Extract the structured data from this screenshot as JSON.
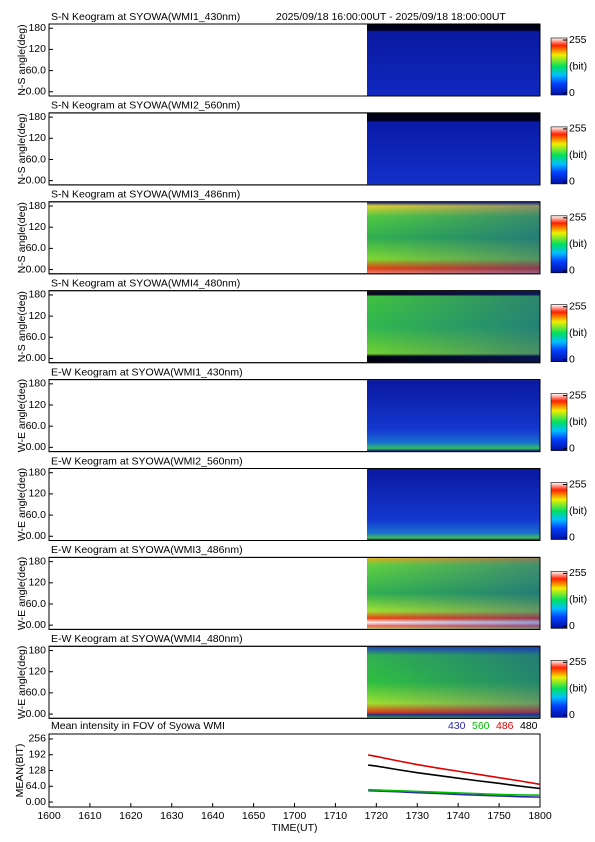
{
  "chart_data": [
    {
      "type": "keogram",
      "title": "S-N Keogram at SYOWA(WMI1_430nm)",
      "subtitle": "2025/09/18 16:00:00UT - 2025/09/18 18:00:00UT",
      "ylabel": "N-S angle(deg)",
      "ylim": [
        -12,
        192
      ],
      "yticks": [
        {
          "value": 0,
          "label": "0.00"
        },
        {
          "value": 60,
          "label": "60.0"
        },
        120,
        180
      ],
      "clim": [
        0,
        255
      ],
      "colorbar_ticks": [
        0,
        255
      ],
      "colorbar_label": "(bit)"
    },
    {
      "type": "keogram",
      "title": "S-N Keogram at SYOWA(WMI2_560nm)",
      "ylabel": "N-S angle(deg)",
      "ylim": [
        -12,
        192
      ],
      "yticks": [
        {
          "value": 0,
          "label": "0.00"
        },
        {
          "value": 60,
          "label": "60.0"
        },
        120,
        180
      ],
      "clim": [
        0,
        255
      ],
      "colorbar_ticks": [
        0,
        255
      ],
      "colorbar_label": "(bit)"
    },
    {
      "type": "keogram",
      "title": "S-N Keogram at SYOWA(WMI3_486nm)",
      "ylabel": "N-S angle(deg)",
      "ylim": [
        -12,
        192
      ],
      "yticks": [
        {
          "value": 0,
          "label": "0.00"
        },
        {
          "value": 60,
          "label": "60.0"
        },
        120,
        180
      ],
      "clim": [
        0,
        255
      ],
      "colorbar_ticks": [
        0,
        255
      ],
      "colorbar_label": "(bit)"
    },
    {
      "type": "keogram",
      "title": "S-N Keogram at SYOWA(WMI4_480nm)",
      "ylabel": "N-S angle(deg)",
      "ylim": [
        -12,
        192
      ],
      "yticks": [
        {
          "value": 0,
          "label": "0.00"
        },
        {
          "value": 60,
          "label": "60.0"
        },
        120,
        180
      ],
      "clim": [
        0,
        255
      ],
      "colorbar_ticks": [
        0,
        255
      ],
      "colorbar_label": "(bit)"
    },
    {
      "type": "keogram",
      "title": "E-W Keogram at SYOWA(WMI1_430nm)",
      "ylabel": "W-E angle(deg)",
      "ylim": [
        -12,
        192
      ],
      "yticks": [
        {
          "value": 0,
          "label": "0.00"
        },
        {
          "value": 60,
          "label": "60.0"
        },
        120,
        180
      ],
      "clim": [
        0,
        255
      ],
      "colorbar_ticks": [
        0,
        255
      ],
      "colorbar_label": "(bit)"
    },
    {
      "type": "keogram",
      "title": "E-W Keogram at SYOWA(WMI2_560nm)",
      "ylabel": "W-E angle(deg)",
      "ylim": [
        -12,
        192
      ],
      "yticks": [
        {
          "value": 0,
          "label": "0.00"
        },
        {
          "value": 60,
          "label": "60.0"
        },
        120,
        180
      ],
      "clim": [
        0,
        255
      ],
      "colorbar_ticks": [
        0,
        255
      ],
      "colorbar_label": "(bit)"
    },
    {
      "type": "keogram",
      "title": "E-W Keogram at SYOWA(WMI3_486nm)",
      "ylabel": "W-E angle(deg)",
      "ylim": [
        -12,
        192
      ],
      "yticks": [
        {
          "value": 0,
          "label": "0.00"
        },
        {
          "value": 60,
          "label": "60.0"
        },
        120,
        180
      ],
      "clim": [
        0,
        255
      ],
      "colorbar_ticks": [
        0,
        255
      ],
      "colorbar_label": "(bit)"
    },
    {
      "type": "keogram",
      "title": "E-W Keogram at SYOWA(WMI4_480nm)",
      "ylabel": "W-E angle(deg)",
      "ylim": [
        -12,
        192
      ],
      "yticks": [
        {
          "value": 0,
          "label": "0.00"
        },
        {
          "value": 60,
          "label": "60.0"
        },
        120,
        180
      ],
      "clim": [
        0,
        255
      ],
      "colorbar_ticks": [
        0,
        255
      ],
      "colorbar_label": "(bit)"
    },
    {
      "type": "line",
      "title": "Mean intensity in FOV of Syowa WMI",
      "xlabel": "TIME(UT)",
      "ylabel": "MEAN(BIT)",
      "xlim": [
        960,
        1080
      ],
      "xticks": [
        {
          "value": 960,
          "label": "1600"
        },
        {
          "value": 970,
          "label": "1610"
        },
        {
          "value": 980,
          "label": "1620"
        },
        {
          "value": 990,
          "label": "1630"
        },
        {
          "value": 1000,
          "label": "1640"
        },
        {
          "value": 1010,
          "label": "1650"
        },
        {
          "value": 1020,
          "label": "1700"
        },
        {
          "value": 1030,
          "label": "1710"
        },
        {
          "value": 1040,
          "label": "1720"
        },
        {
          "value": 1050,
          "label": "1730"
        },
        {
          "value": 1060,
          "label": "1740"
        },
        {
          "value": 1070,
          "label": "1750"
        },
        {
          "value": 1080,
          "label": "1800"
        }
      ],
      "ylim": [
        -20,
        276
      ],
      "yticks": [
        {
          "value": 0,
          "label": "0.00"
        },
        {
          "value": 64,
          "label": "64.0"
        },
        128,
        192,
        256
      ],
      "x": [
        1038,
        1040,
        1045,
        1050,
        1055,
        1060,
        1065,
        1070,
        1075,
        1080
      ],
      "series": [
        {
          "name": "430",
          "color": "#2a2aa8",
          "values": [
            46,
            45,
            42,
            38,
            35,
            31,
            28,
            25,
            22,
            20
          ]
        },
        {
          "name": "560",
          "color": "#00c000",
          "values": [
            50,
            49,
            46,
            43,
            40,
            37,
            34,
            31,
            29,
            28
          ]
        },
        {
          "name": "486",
          "color": "#e00000",
          "values": [
            191,
            185,
            168,
            152,
            138,
            125,
            112,
            99,
            86,
            72
          ]
        },
        {
          "name": "480",
          "color": "#000000",
          "values": [
            150,
            146,
            132,
            119,
            108,
            97,
            86,
            76,
            65,
            55
          ]
        }
      ]
    }
  ]
}
